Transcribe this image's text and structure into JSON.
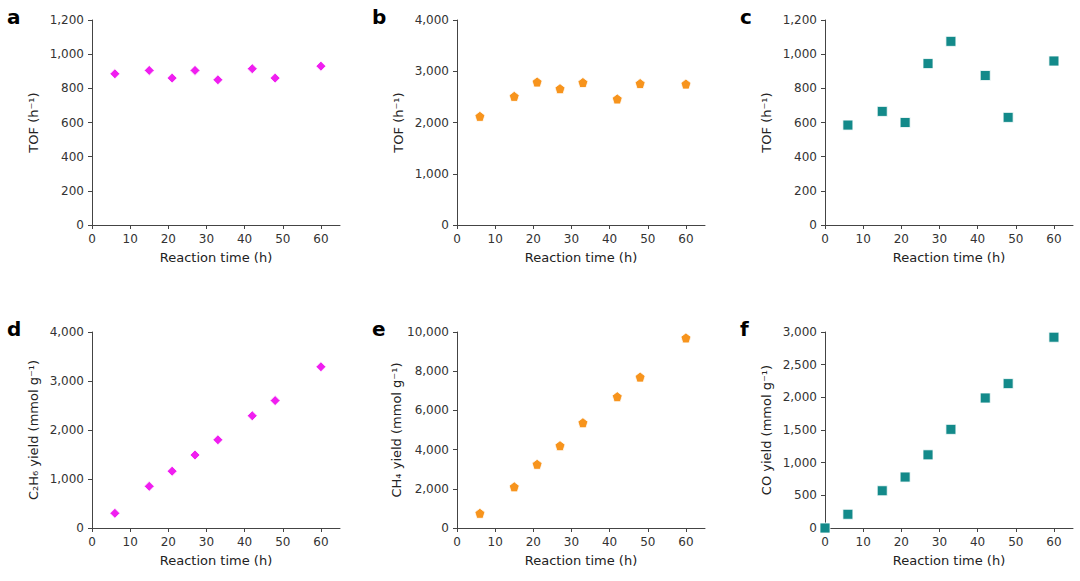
{
  "chart_data": [
    {
      "type": "scatter",
      "title": "a",
      "xlabel": "Reaction time (h)",
      "ylabel": "TOF (h⁻¹)",
      "x": [
        6,
        15,
        21,
        27,
        33,
        42,
        48,
        60
      ],
      "values": [
        885,
        905,
        860,
        905,
        850,
        915,
        860,
        930
      ],
      "color": "#f01ef0",
      "marker": "diamond",
      "grid": false,
      "xlim": [
        0,
        65
      ],
      "xticks": [
        0,
        10,
        20,
        30,
        40,
        50,
        60
      ],
      "ylim": [
        0,
        1200
      ],
      "yticks": [
        0,
        200,
        400,
        600,
        800,
        {
          "value": 1000,
          "label": "1,000"
        },
        {
          "value": 1200,
          "label": "1,200"
        }
      ]
    },
    {
      "type": "scatter",
      "title": "b",
      "xlabel": "Reaction time (h)",
      "ylabel": "TOF (h⁻¹)",
      "x": [
        6,
        15,
        21,
        27,
        33,
        42,
        48,
        60
      ],
      "values": [
        2120,
        2510,
        2790,
        2660,
        2780,
        2460,
        2760,
        2750
      ],
      "color": "#f7941d",
      "marker": "pentagon",
      "grid": false,
      "xlim": [
        0,
        65
      ],
      "xticks": [
        0,
        10,
        20,
        30,
        40,
        50,
        60
      ],
      "ylim": [
        0,
        4000
      ],
      "yticks": [
        0,
        {
          "value": 1000,
          "label": "1,000"
        },
        {
          "value": 2000,
          "label": "2,000"
        },
        {
          "value": 3000,
          "label": "3,000"
        },
        {
          "value": 4000,
          "label": "4,000"
        }
      ]
    },
    {
      "type": "scatter",
      "title": "c",
      "xlabel": "Reaction time (h)",
      "ylabel": "TOF (h⁻¹)",
      "x": [
        6,
        15,
        21,
        27,
        33,
        42,
        48,
        60
      ],
      "values": [
        585,
        665,
        600,
        945,
        1075,
        875,
        630,
        960
      ],
      "color": "#138a8a",
      "marker": "square",
      "grid": false,
      "xlim": [
        0,
        65
      ],
      "xticks": [
        0,
        10,
        20,
        30,
        40,
        50,
        60
      ],
      "ylim": [
        0,
        1200
      ],
      "yticks": [
        0,
        200,
        400,
        600,
        800,
        {
          "value": 1000,
          "label": "1,000"
        },
        {
          "value": 1200,
          "label": "1,200"
        }
      ]
    },
    {
      "type": "scatter",
      "title": "d",
      "xlabel": "Reaction time (h)",
      "ylabel": "C₂H₆ yield (mmol g⁻¹)",
      "x": [
        6,
        15,
        21,
        27,
        33,
        42,
        48,
        60
      ],
      "values": [
        300,
        850,
        1160,
        1490,
        1800,
        2290,
        2600,
        3290
      ],
      "color": "#f01ef0",
      "marker": "diamond",
      "grid": false,
      "xlim": [
        0,
        65
      ],
      "xticks": [
        0,
        10,
        20,
        30,
        40,
        50,
        60
      ],
      "ylim": [
        0,
        4000
      ],
      "yticks": [
        0,
        {
          "value": 1000,
          "label": "1,000"
        },
        {
          "value": 2000,
          "label": "2,000"
        },
        {
          "value": 3000,
          "label": "3,000"
        },
        {
          "value": 4000,
          "label": "4,000"
        }
      ]
    },
    {
      "type": "scatter",
      "title": "e",
      "xlabel": "Reaction time (h)",
      "ylabel": "CH₄ yield (mmol g⁻¹)",
      "x": [
        6,
        15,
        21,
        27,
        33,
        42,
        48,
        60
      ],
      "values": [
        750,
        2100,
        3250,
        4200,
        5370,
        6700,
        7700,
        9700
      ],
      "color": "#f7941d",
      "marker": "pentagon",
      "grid": false,
      "xlim": [
        0,
        65
      ],
      "xticks": [
        0,
        10,
        20,
        30,
        40,
        50,
        60
      ],
      "ylim": [
        0,
        10000
      ],
      "yticks": [
        0,
        {
          "value": 2000,
          "label": "2,000"
        },
        {
          "value": 4000,
          "label": "4,000"
        },
        {
          "value": 6000,
          "label": "6,000"
        },
        {
          "value": 8000,
          "label": "8,000"
        },
        {
          "value": 10000,
          "label": "10,000"
        }
      ]
    },
    {
      "type": "scatter",
      "title": "f",
      "xlabel": "Reaction time (h)",
      "ylabel": "CO yield (mmol g⁻¹)",
      "x": [
        0,
        6,
        15,
        21,
        27,
        33,
        42,
        48,
        60
      ],
      "values": [
        0,
        210,
        570,
        780,
        1120,
        1510,
        1990,
        2210,
        2920
      ],
      "color": "#138a8a",
      "marker": "square",
      "grid": false,
      "xlim": [
        0,
        65
      ],
      "xticks": [
        0,
        10,
        20,
        30,
        40,
        50,
        60
      ],
      "ylim": [
        0,
        3000
      ],
      "yticks": [
        0,
        500,
        {
          "value": 1000,
          "label": "1,000"
        },
        {
          "value": 1500,
          "label": "1,500"
        },
        {
          "value": 2000,
          "label": "2,000"
        },
        {
          "value": 2500,
          "label": "2,500"
        },
        {
          "value": 3000,
          "label": "3,000"
        }
      ]
    }
  ]
}
